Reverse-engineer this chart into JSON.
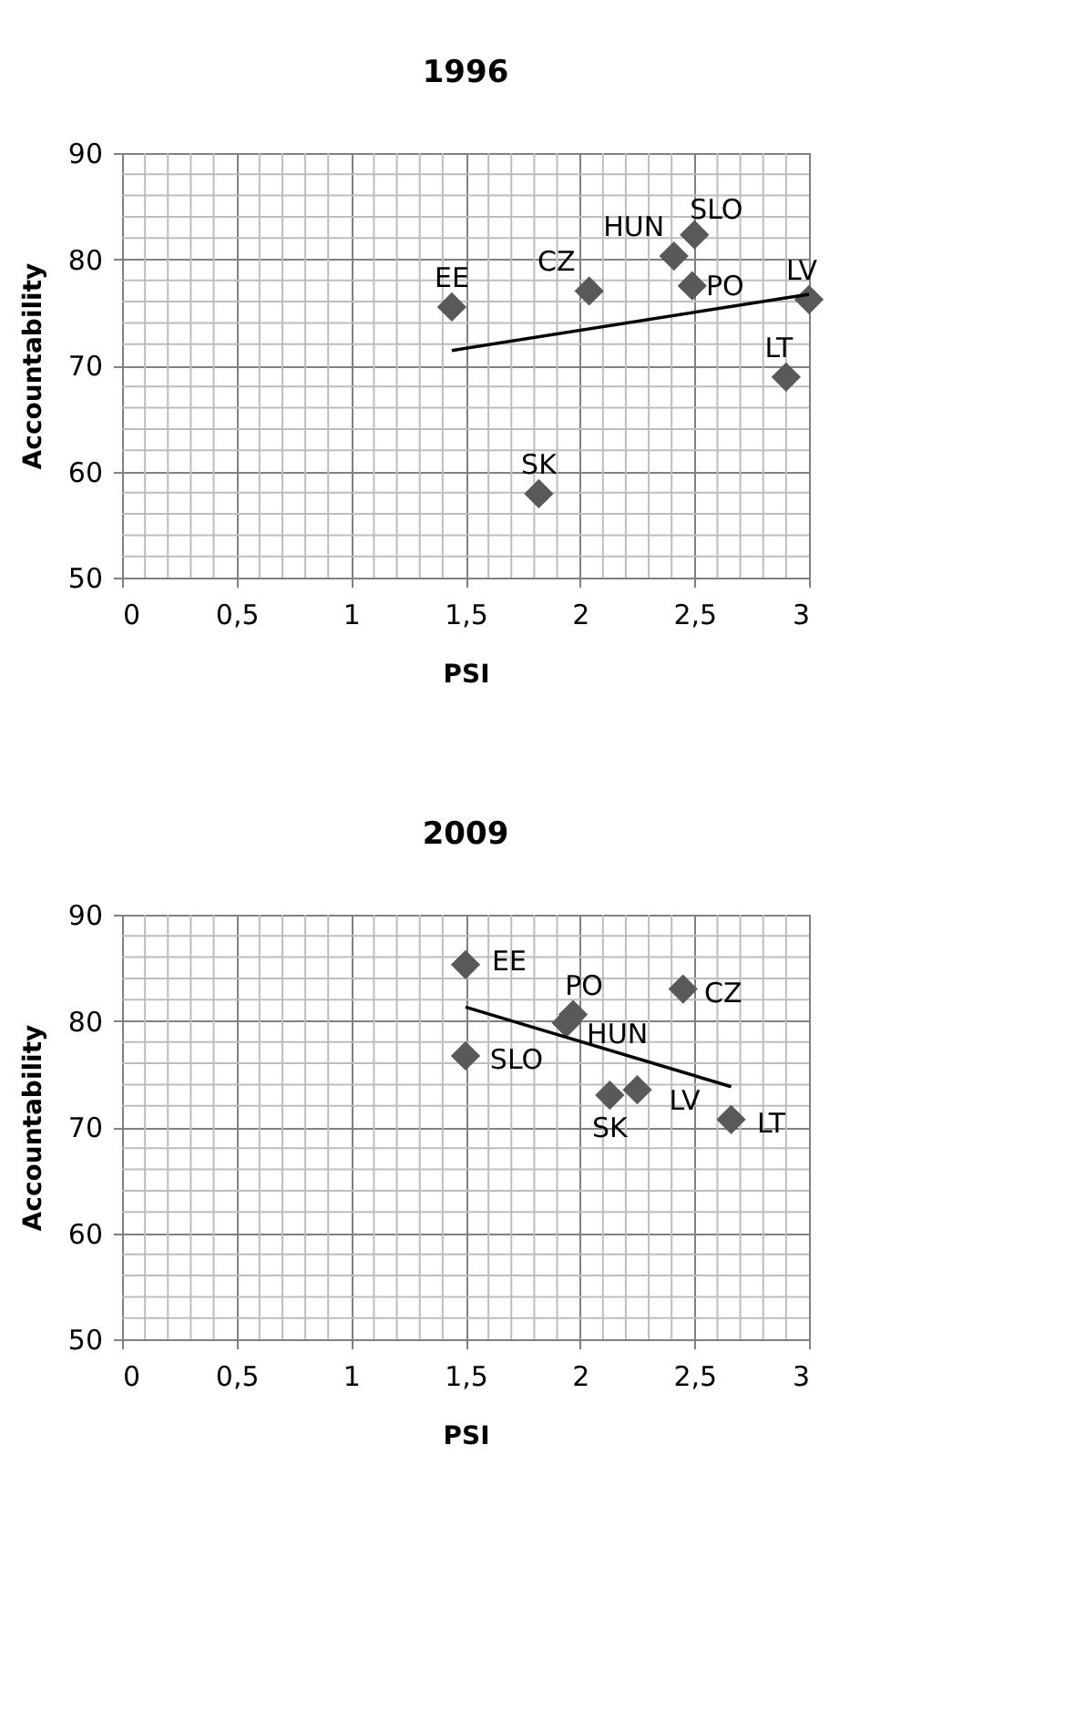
{
  "chart_data": [
    {
      "type": "scatter",
      "title": "1996",
      "xlabel": "PSI",
      "ylabel": "Accountability",
      "xlim": [
        0,
        3
      ],
      "ylim": [
        50,
        90
      ],
      "xticks": [
        0,
        {
          "value": 0.5,
          "label": "0,5"
        },
        1,
        {
          "value": 1.5,
          "label": "1,5"
        },
        2,
        {
          "value": 2.5,
          "label": "2,5"
        },
        3
      ],
      "yticks": [
        50,
        60,
        70,
        80,
        90
      ],
      "grid": true,
      "marker": "diamond",
      "series": [
        {
          "color": "#595959",
          "x": [
            1.44,
            2.04,
            2.41,
            2.5,
            2.49,
            3.0,
            2.9,
            1.82
          ],
          "values": [
            75.5,
            77,
            80.3,
            82.3,
            77.5,
            76.2,
            68.9,
            57.9
          ]
        },
        {
          "type": "line",
          "color": "#000000",
          "marker": "none",
          "x": [
            1.44,
            3.0
          ],
          "values": [
            71.4,
            76.7
          ]
        }
      ],
      "annotations": [
        {
          "text": "EE",
          "x": 1.44,
          "y": 75.5
        },
        {
          "text": "CZ",
          "x": 2.04,
          "y": 77
        },
        {
          "text": "HUN",
          "x": 2.41,
          "y": 80.3
        },
        {
          "text": "SLO",
          "x": 2.5,
          "y": 82.3
        },
        {
          "text": "PO",
          "x": 2.49,
          "y": 77.5
        },
        {
          "text": "LV",
          "x": 3.0,
          "y": 76.2
        },
        {
          "text": "LT",
          "x": 2.9,
          "y": 68.9
        },
        {
          "text": "SK",
          "x": 1.82,
          "y": 57.9
        }
      ]
    },
    {
      "type": "scatter",
      "title": "2009",
      "xlabel": "PSI",
      "ylabel": "Accountability",
      "xlim": [
        0,
        3
      ],
      "ylim": [
        50,
        90
      ],
      "xticks": [
        0,
        {
          "value": 0.5,
          "label": "0,5"
        },
        1,
        {
          "value": 1.5,
          "label": "1,5"
        },
        2,
        {
          "value": 2.5,
          "label": "2,5"
        },
        3
      ],
      "yticks": [
        50,
        60,
        70,
        80,
        90
      ],
      "grid": true,
      "marker": "diamond",
      "series": [
        {
          "color": "#595959",
          "x": [
            1.5,
            1.97,
            1.94,
            2.45,
            1.5,
            2.13,
            2.25,
            2.66
          ],
          "values": [
            85.3,
            80.6,
            79.8,
            83,
            76.7,
            73,
            73.5,
            70.7
          ]
        },
        {
          "type": "line",
          "color": "#000000",
          "marker": "none",
          "x": [
            1.5,
            2.66
          ],
          "values": [
            81.3,
            73.8
          ]
        }
      ],
      "annotations": [
        {
          "text": "EE",
          "x": 1.5,
          "y": 85.3
        },
        {
          "text": "PO",
          "x": 1.97,
          "y": 80.6
        },
        {
          "text": "HUN",
          "x": 1.94,
          "y": 79.8
        },
        {
          "text": "CZ",
          "x": 2.45,
          "y": 83
        },
        {
          "text": "SLO",
          "x": 1.5,
          "y": 76.7
        },
        {
          "text": "SK",
          "x": 2.13,
          "y": 73
        },
        {
          "text": "LV",
          "x": 2.25,
          "y": 73.5
        },
        {
          "text": "LT",
          "x": 2.66,
          "y": 70.7
        }
      ]
    }
  ]
}
